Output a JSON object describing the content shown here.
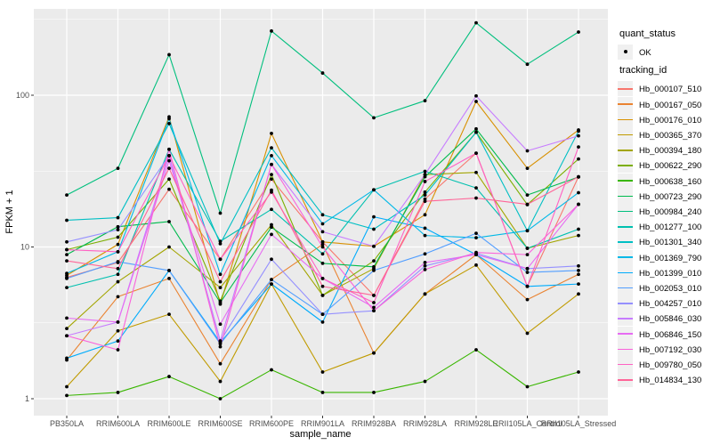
{
  "figure": {
    "background": "#FFFFFF",
    "panel_bg": "#EBEBEB",
    "grid_color": "#FFFFFF",
    "tick_mark_color": "#333333",
    "tick_text_color": "#4D4D4D",
    "marker_color": "#000000"
  },
  "legend": {
    "quant_status_title": "quant_status",
    "ok_label": "OK",
    "tracking_id_title": "tracking_id"
  },
  "chart_data": {
    "type": "line",
    "title": "",
    "xlabel": "sample_name",
    "ylabel": "FPKM + 1",
    "y_scale": "log10",
    "ylim": [
      0.77,
      370
    ],
    "grid": true,
    "legend_position": "right",
    "y_ticks": [
      {
        "value": 1,
        "label": "1"
      },
      {
        "value": 10,
        "label": "10"
      },
      {
        "value": 100,
        "label": "100"
      }
    ],
    "y_minor_ticks": [
      3.162,
      31.62,
      316.2
    ],
    "categories": [
      "PB350LA",
      "RRIM600LA",
      "RRIM600LE",
      "RRIM600SE",
      "RRIM600PE",
      "RRIM901LA",
      "RRIM928BA",
      "RRIM928LA",
      "RRIM928LE",
      "RRII105LA_Control",
      "RRII105LA_Stressed"
    ],
    "quant_status": "OK",
    "series": [
      {
        "name": "Hb_000107_510",
        "color": "#F8766D",
        "values": [
          6.3,
          7.9,
          24,
          8.3,
          28,
          10.8,
          4.8,
          20.7,
          41.5,
          5.5,
          29
        ]
      },
      {
        "name": "Hb_000167_050",
        "color": "#EA8331",
        "values": [
          1.8,
          4.7,
          6.2,
          1.7,
          6.1,
          10.4,
          2.0,
          4.9,
          8.9,
          4.5,
          6.6
        ]
      },
      {
        "name": "Hb_000176_010",
        "color": "#D89000",
        "values": [
          6.5,
          10.4,
          72,
          4.2,
          56,
          10.8,
          10.1,
          16.3,
          91,
          33,
          59
        ]
      },
      {
        "name": "Hb_000365_370",
        "color": "#C09B00",
        "values": [
          1.2,
          2.8,
          3.6,
          1.3,
          5.7,
          1.5,
          2.0,
          4.9,
          7.6,
          2.7,
          4.9
        ]
      },
      {
        "name": "Hb_000394_180",
        "color": "#A3A500",
        "values": [
          2.9,
          5.9,
          10,
          5.4,
          14,
          4.8,
          7.2,
          30,
          31,
          9.8,
          11.9
        ]
      },
      {
        "name": "Hb_000622_290",
        "color": "#7CAE00",
        "values": [
          9.6,
          11.6,
          28,
          4.4,
          30,
          4.8,
          8.1,
          23,
          57,
          19,
          38
        ]
      },
      {
        "name": "Hb_000638_160",
        "color": "#39B600",
        "values": [
          1.05,
          1.1,
          1.4,
          1.0,
          1.55,
          1.1,
          1.1,
          1.3,
          2.1,
          1.2,
          1.5
        ]
      },
      {
        "name": "Hb_000723_290",
        "color": "#00BB4E",
        "values": [
          8.9,
          13.6,
          14.7,
          4.3,
          13.5,
          7.8,
          7.4,
          29,
          60,
          22,
          28.9
        ]
      },
      {
        "name": "Hb_000984_240",
        "color": "#00BF7D",
        "values": [
          22,
          33,
          185,
          16.7,
          265,
          140,
          71,
          92,
          300,
          160,
          261
        ]
      },
      {
        "name": "Hb_001277_100",
        "color": "#00C0AF",
        "values": [
          5.4,
          6.6,
          44,
          10.9,
          17.7,
          9.0,
          23.8,
          31.5,
          24.5,
          9.8,
          13.1
        ]
      },
      {
        "name": "Hb_001301_340",
        "color": "#00BFC4",
        "values": [
          15,
          15.6,
          65,
          10.5,
          45,
          16.3,
          13.1,
          22,
          57,
          12.8,
          58
        ]
      },
      {
        "name": "Hb_001369_790",
        "color": "#00B8E7",
        "values": [
          6.7,
          9.3,
          70,
          6.6,
          40,
          14.2,
          23.8,
          11.9,
          11.5,
          12.8,
          22.8
        ]
      },
      {
        "name": "Hb_001399_010",
        "color": "#00ACFC",
        "values": [
          1.85,
          2.4,
          7.0,
          2.35,
          5.7,
          3.2,
          15.8,
          13.3,
          8.9,
          5.5,
          5.7
        ]
      },
      {
        "name": "Hb_002053_010",
        "color": "#529EFF",
        "values": [
          6.2,
          8.0,
          7.0,
          2.3,
          6.1,
          3.6,
          7.0,
          9.0,
          12.3,
          6.8,
          7.0
        ]
      },
      {
        "name": "Hb_004257_010",
        "color": "#9590FF",
        "values": [
          10.8,
          13,
          40,
          2.4,
          8.3,
          3.6,
          3.8,
          7.5,
          9.1,
          7.2,
          7.5
        ]
      },
      {
        "name": "Hb_005846_030",
        "color": "#C77CFF",
        "values": [
          2.6,
          3.2,
          40,
          2.4,
          35,
          12.6,
          10.1,
          30,
          99,
          43,
          54
        ]
      },
      {
        "name": "Hb_006846_150",
        "color": "#E76BF3",
        "values": [
          3.4,
          3.2,
          37,
          3.1,
          12.1,
          6.2,
          4.0,
          7.9,
          8.9,
          7.2,
          19.1
        ]
      },
      {
        "name": "Hb_007192_030",
        "color": "#FA62DB",
        "values": [
          2.6,
          2.1,
          44,
          2.2,
          35,
          10.0,
          3.8,
          7.1,
          9.2,
          8.9,
          19.1
        ]
      },
      {
        "name": "Hb_009780_050",
        "color": "#FF61C3",
        "values": [
          9.6,
          9.3,
          40,
          8.3,
          23,
          6.2,
          4.3,
          27,
          41.5,
          5.5,
          45.6
        ]
      },
      {
        "name": "Hb_014834_130",
        "color": "#FF6598",
        "values": [
          8.1,
          7.2,
          33,
          5.9,
          23.7,
          5.5,
          4.8,
          20,
          21,
          19.1,
          29
        ]
      }
    ]
  }
}
